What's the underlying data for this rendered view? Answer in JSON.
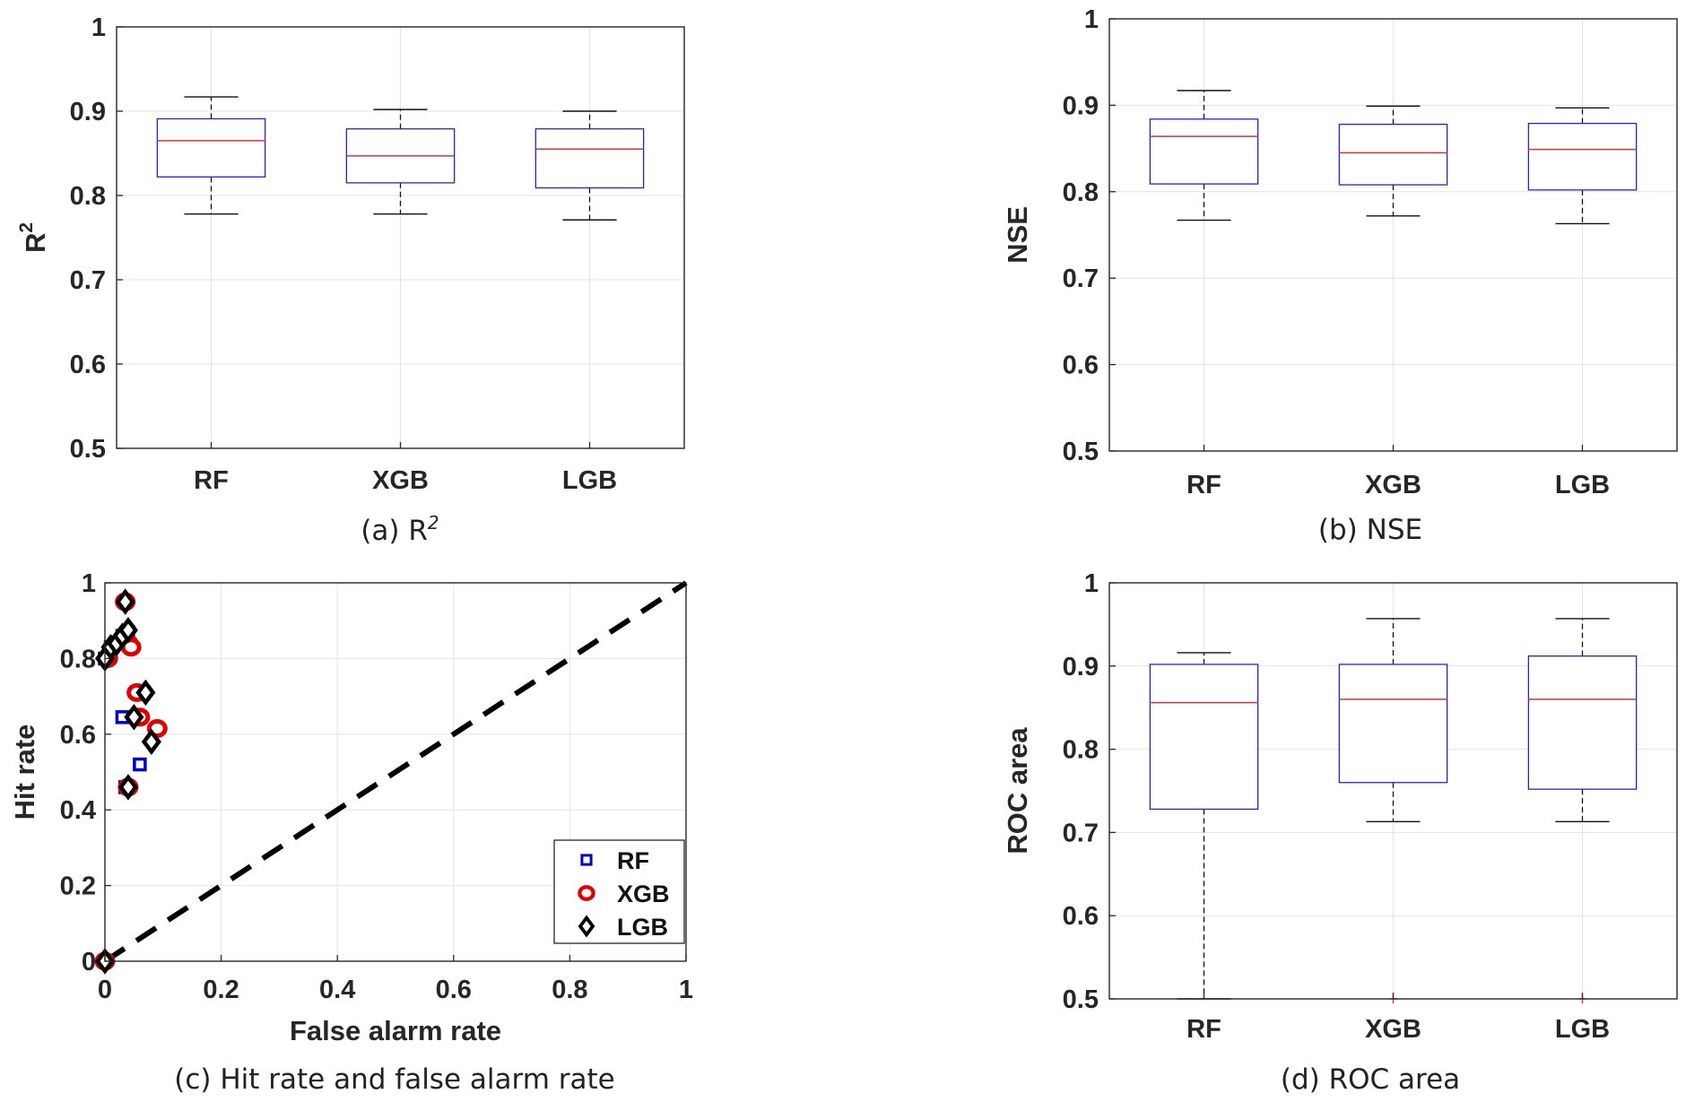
{
  "chart_data": [
    {
      "type": "boxplot",
      "caption": "(a) R",
      "caption_sup": "2",
      "ylabel": "R",
      "ylabel_sup": "2",
      "ylim": [
        0.5,
        1
      ],
      "yticks": [
        0.5,
        0.6,
        0.7,
        0.8,
        0.9,
        1
      ],
      "categories": [
        "RF",
        "XGB",
        "LGB"
      ],
      "boxes": [
        {
          "whisker_low": 0.778,
          "q1": 0.822,
          "median": 0.865,
          "q3": 0.891,
          "whisker_high": 0.917,
          "outliers": []
        },
        {
          "whisker_low": 0.778,
          "q1": 0.815,
          "median": 0.847,
          "q3": 0.879,
          "whisker_high": 0.902,
          "outliers": []
        },
        {
          "whisker_low": 0.771,
          "q1": 0.809,
          "median": 0.855,
          "q3": 0.879,
          "whisker_high": 0.9,
          "outliers": []
        }
      ],
      "grid": true
    },
    {
      "type": "boxplot",
      "caption": "(b) NSE",
      "ylabel": "NSE",
      "ylim": [
        0.5,
        1
      ],
      "yticks": [
        0.5,
        0.6,
        0.7,
        0.8,
        0.9,
        1
      ],
      "categories": [
        "RF",
        "XGB",
        "LGB"
      ],
      "boxes": [
        {
          "whisker_low": 0.767,
          "q1": 0.809,
          "median": 0.864,
          "q3": 0.884,
          "whisker_high": 0.917,
          "outliers": []
        },
        {
          "whisker_low": 0.772,
          "q1": 0.808,
          "median": 0.845,
          "q3": 0.878,
          "whisker_high": 0.899,
          "outliers": []
        },
        {
          "whisker_low": 0.763,
          "q1": 0.802,
          "median": 0.849,
          "q3": 0.879,
          "whisker_high": 0.897,
          "outliers": []
        }
      ],
      "grid": true
    },
    {
      "type": "scatter",
      "caption": "(c) Hit rate and false alarm rate",
      "xlabel": "False alarm rate",
      "ylabel": "Hit rate",
      "xlim": [
        0,
        1
      ],
      "ylim": [
        0,
        1
      ],
      "xticks": [
        0,
        0.2,
        0.4,
        0.6,
        0.8,
        1
      ],
      "yticks": [
        0,
        0.2,
        0.4,
        0.6,
        0.8,
        1
      ],
      "reference_line": {
        "x": [
          0,
          1
        ],
        "y": [
          0,
          1
        ],
        "style": "dashed",
        "color": "#000000"
      },
      "legend_position": "bottom-right",
      "series": [
        {
          "name": "RF",
          "color": "#0000cc",
          "marker": "square",
          "points": [
            [
              0.0,
              0.0
            ],
            [
              0.0,
              0.8
            ],
            [
              0.01,
              0.83
            ],
            [
              0.03,
              0.86
            ],
            [
              0.04,
              0.87
            ],
            [
              0.03,
              0.645
            ],
            [
              0.06,
              0.52
            ],
            [
              0.035,
              0.46
            ]
          ]
        },
        {
          "name": "XGB",
          "color": "#e00000",
          "marker": "circle",
          "points": [
            [
              0.0,
              0.0
            ],
            [
              0.005,
              0.8
            ],
            [
              0.035,
              0.95
            ],
            [
              0.04,
              0.84
            ],
            [
              0.045,
              0.83
            ],
            [
              0.055,
              0.71
            ],
            [
              0.06,
              0.645
            ],
            [
              0.09,
              0.615
            ],
            [
              0.04,
              0.46
            ]
          ]
        },
        {
          "name": "LGB",
          "color": "#000000",
          "marker": "diamond",
          "points": [
            [
              0.0,
              0.0
            ],
            [
              0.0,
              0.8
            ],
            [
              0.01,
              0.83
            ],
            [
              0.02,
              0.84
            ],
            [
              0.03,
              0.86
            ],
            [
              0.04,
              0.875
            ],
            [
              0.035,
              0.95
            ],
            [
              0.07,
              0.71
            ],
            [
              0.05,
              0.645
            ],
            [
              0.08,
              0.58
            ],
            [
              0.04,
              0.46
            ]
          ]
        }
      ],
      "grid": true
    },
    {
      "type": "boxplot",
      "caption": "(d) ROC area",
      "ylabel": "ROC area",
      "ylim": [
        0.5,
        1
      ],
      "yticks": [
        0.5,
        0.6,
        0.7,
        0.8,
        0.9,
        1
      ],
      "categories": [
        "RF",
        "XGB",
        "LGB"
      ],
      "boxes": [
        {
          "whisker_low": 0.5,
          "q1": 0.728,
          "median": 0.856,
          "q3": 0.902,
          "whisker_high": 0.916,
          "outliers": []
        },
        {
          "whisker_low": 0.713,
          "q1": 0.76,
          "median": 0.86,
          "q3": 0.902,
          "whisker_high": 0.957,
          "outliers": [
            0.5
          ]
        },
        {
          "whisker_low": 0.713,
          "q1": 0.752,
          "median": 0.86,
          "q3": 0.912,
          "whisker_high": 0.957,
          "outliers": [
            0.5
          ]
        }
      ],
      "grid": true
    }
  ]
}
